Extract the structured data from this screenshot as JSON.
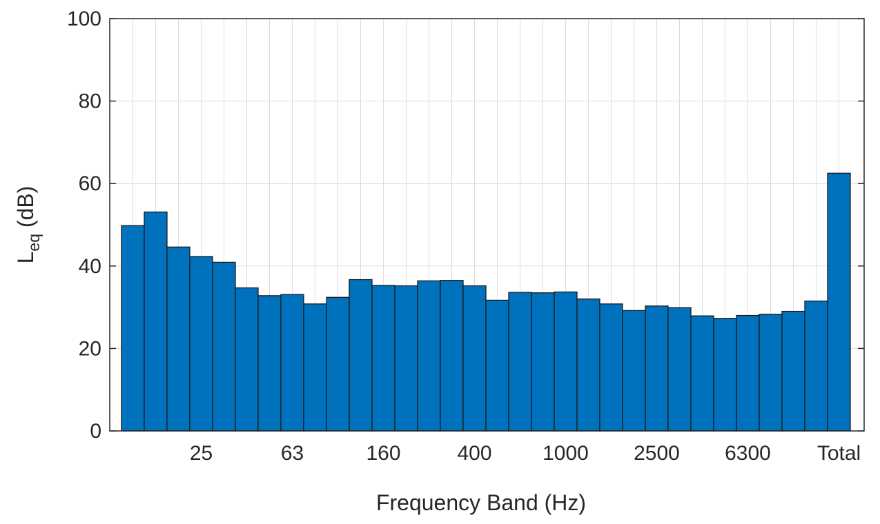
{
  "chart_data": {
    "type": "bar",
    "xlabel": "Frequency Band (Hz)",
    "ylabel": {
      "main": "L",
      "subscript": "eq",
      "unit": " (dB)"
    },
    "ylim": [
      0,
      100
    ],
    "yticks": [
      0,
      20,
      40,
      60,
      80,
      100
    ],
    "grid": true,
    "bar_color": "#0072BD",
    "bar_edge_color": "#1a1a1a",
    "grid_color": "#dcdcdc",
    "x_tick_labels": [
      {
        "label": "25",
        "band_index": 3
      },
      {
        "label": "63",
        "band_index": 7
      },
      {
        "label": "160",
        "band_index": 11
      },
      {
        "label": "400",
        "band_index": 15
      },
      {
        "label": "1000",
        "band_index": 19
      },
      {
        "label": "2500",
        "band_index": 23
      },
      {
        "label": "6300",
        "band_index": 27
      },
      {
        "label": "Total",
        "band_index": 31
      }
    ],
    "values": [
      49.8,
      53.1,
      44.6,
      42.3,
      40.9,
      34.7,
      32.8,
      33.1,
      30.8,
      32.4,
      36.7,
      35.3,
      35.2,
      36.4,
      36.5,
      35.2,
      31.7,
      33.6,
      33.5,
      33.7,
      32.0,
      30.8,
      29.2,
      30.3,
      29.9,
      27.9,
      27.3,
      28.0,
      28.3,
      29.0,
      31.5,
      62.5
    ]
  }
}
